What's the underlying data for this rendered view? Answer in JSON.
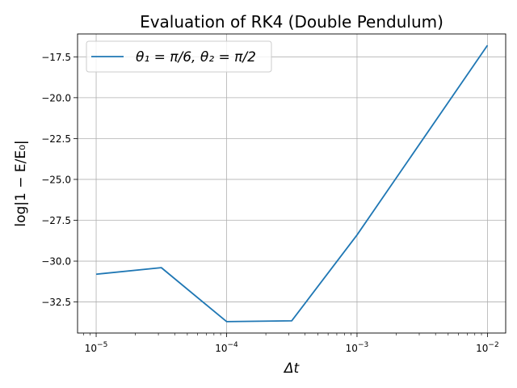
{
  "chart_data": {
    "type": "line",
    "title": "Evaluation of RK4 (Double Pendulum)",
    "xlabel": "Δt",
    "ylabel": "log|1 − E/E₀|",
    "x_scale": "log",
    "xlim": [
      7.2e-06,
      0.0138
    ],
    "ylim": [
      -34.4,
      -16.1
    ],
    "grid": true,
    "legend_position": "upper-left",
    "x_ticks": [
      {
        "value": 1e-05,
        "base": "10",
        "exp": "−5"
      },
      {
        "value": 0.0001,
        "base": "10",
        "exp": "−4"
      },
      {
        "value": 0.001,
        "base": "10",
        "exp": "−3"
      },
      {
        "value": 0.01,
        "base": "10",
        "exp": "−2"
      }
    ],
    "y_ticks": [
      {
        "value": -32.5,
        "label": "−32.5"
      },
      {
        "value": -30.0,
        "label": "−30.0"
      },
      {
        "value": -27.5,
        "label": "−27.5"
      },
      {
        "value": -25.0,
        "label": "−25.0"
      },
      {
        "value": -22.5,
        "label": "−22.5"
      },
      {
        "value": -20.0,
        "label": "−20.0"
      },
      {
        "value": -17.5,
        "label": "−17.5"
      }
    ],
    "series": [
      {
        "name": "θ₁ = π/6, θ₂ = π/2",
        "color": "#1f77b4",
        "x": [
          1e-05,
          3.16e-05,
          0.0001,
          0.000316,
          0.001,
          0.01
        ],
        "y": [
          -30.8,
          -30.4,
          -33.7,
          -33.65,
          -28.4,
          -16.8
        ]
      }
    ]
  }
}
